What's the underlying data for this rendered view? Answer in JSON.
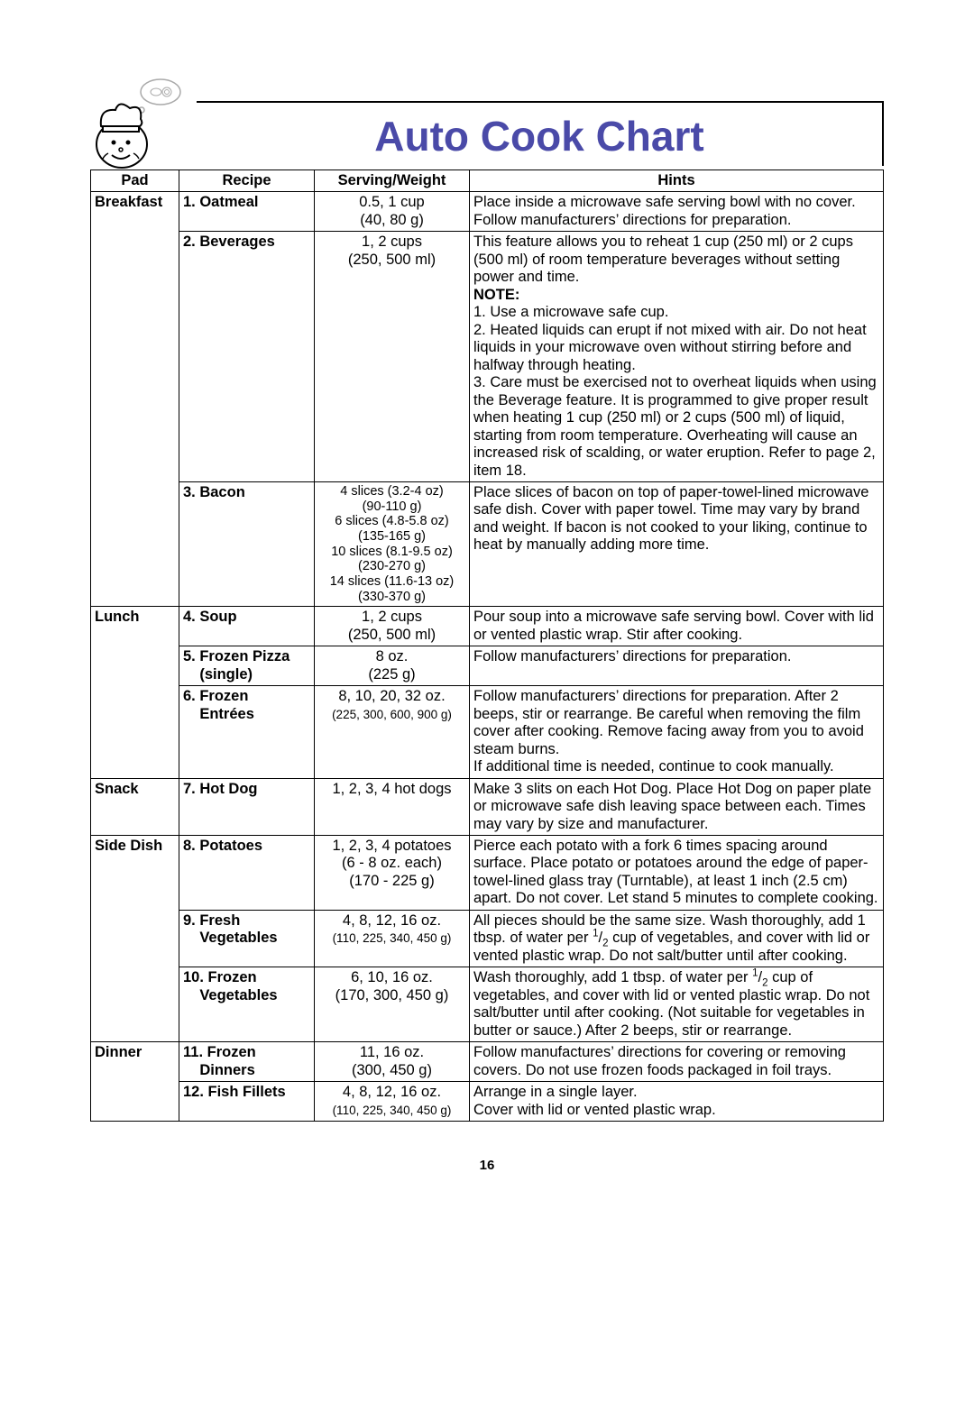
{
  "page": {
    "title": "Auto Cook Chart",
    "page_number": "16",
    "title_color": "#4a4aa8",
    "border_color": "#000000",
    "background_color": "#ffffff"
  },
  "columns": {
    "pad": "Pad",
    "recipe": "Recipe",
    "serving": "Serving/Weight",
    "hints": "Hints"
  },
  "rows": [
    {
      "pad": "Breakfast",
      "recipe": "1. Oatmeal",
      "serving": "0.5, 1 cup\n(40, 80 g)",
      "hints": "Place inside a microwave safe serving bowl with no cover. Follow manufacturers’ directions for preparation."
    },
    {
      "recipe": "2. Beverages",
      "serving": "1, 2 cups\n(250, 500 ml)",
      "hints_pre": "This feature allows you to reheat 1 cup (250 ml) or 2 cups (500 ml) of room temperature beverages without setting power and time.",
      "note_label": "NOTE:",
      "notes": [
        "1. Use a microwave safe cup.",
        "2. Heated liquids can erupt if not mixed with air. Do not heat liquids in your microwave oven without stirring before and halfway through heating.",
        "3. Care must be exercised not to overheat liquids when using the Beverage feature. It is programmed to give proper result when heating 1 cup (250 ml) or 2 cups (500 ml) of liquid, starting from room temperature. Overheating will cause an increased risk of scalding, or water eruption. Refer to page 2, item 18."
      ]
    },
    {
      "recipe": "3. Bacon",
      "serving_lines": [
        "4 slices (3.2-4 oz)",
        "(90-110 g)",
        "6 slices (4.8-5.8 oz)",
        "(135-165 g)",
        "10 slices (8.1-9.5 oz)",
        "(230-270 g)",
        "14 slices (11.6-13 oz)",
        "(330-370 g)"
      ],
      "hints": "Place slices of bacon on top of paper-towel-lined microwave safe dish. Cover with paper towel. Time may vary by brand and weight. If bacon is not cooked to your liking, continue to heat by manually adding more time."
    },
    {
      "pad": "Lunch",
      "recipe": "4. Soup",
      "serving": "1, 2 cups\n(250, 500 ml)",
      "hints": "Pour soup into a microwave safe serving bowl. Cover with lid or vented plastic wrap. Stir after cooking."
    },
    {
      "recipe": "5. Frozen Pizza\n(single)",
      "serving": "8 oz.\n(225 g)",
      "hints": "Follow manufacturers’ directions for preparation."
    },
    {
      "recipe": "6. Frozen\nEntrées",
      "serving": "8, 10, 20, 32 oz.",
      "serving_sub": "(225, 300, 600, 900 g)",
      "hints": "Follow manufacturers’ directions for preparation. After 2 beeps, stir or rearrange. Be careful when removing the film cover after cooking. Remove facing away from you to avoid steam burns.\nIf additional time is needed, continue to cook manually."
    },
    {
      "pad": "Snack",
      "recipe": "7. Hot Dog",
      "serving": "1, 2, 3, 4 hot dogs",
      "hints": "Make 3 slits on each Hot Dog. Place Hot Dog on paper plate or microwave safe dish leaving space between each. Times may vary by size and manufacturer."
    },
    {
      "pad": "Side Dish",
      "recipe": "8. Potatoes",
      "serving": "1, 2, 3, 4 potatoes\n(6 - 8 oz. each)\n(170 - 225 g)",
      "hints": "Pierce each potato with a fork 6 times spacing around surface. Place potato or potatoes around the edge of paper-towel-lined glass tray (Turntable), at least 1 inch (2.5 cm) apart. Do not cover. Let stand 5 minutes to complete cooking."
    },
    {
      "recipe": "9. Fresh\nVegetables",
      "serving": "4, 8, 12, 16 oz.",
      "serving_sub": "(110, 225, 340, 450 g)",
      "hints_html": "All pieces should be the same size. Wash thoroughly, add 1 tbsp. of water per <span class='frac'><sup>1</sup>/<sub>2</sub></span> cup of vegetables, and cover with lid or vented plastic wrap. Do not salt/butter until after cooking."
    },
    {
      "recipe": "10. Frozen\nVegetables",
      "serving": "6, 10, 16 oz.\n(170, 300, 450 g)",
      "hints_html": "Wash thoroughly, add 1 tbsp. of water per <span class='frac'><sup>1</sup>/<sub>2</sub></span> cup of vegetables, and cover with lid or vented plastic wrap. Do not salt/butter until after cooking. (Not suitable for vegetables in butter or sauce.) After 2 beeps, stir or rearrange."
    },
    {
      "pad": "Dinner",
      "recipe": "11. Frozen\nDinners",
      "serving": "11, 16 oz.\n(300, 450 g)",
      "hints": "Follow manufactures’ directions for covering or removing covers. Do not use frozen foods packaged in foil trays."
    },
    {
      "recipe": "12. Fish Fillets",
      "serving": "4, 8, 12, 16 oz.",
      "serving_sub": "(110, 225, 340, 450 g)",
      "hints": "Arrange in a single layer.\nCover with lid or vented plastic wrap."
    }
  ]
}
